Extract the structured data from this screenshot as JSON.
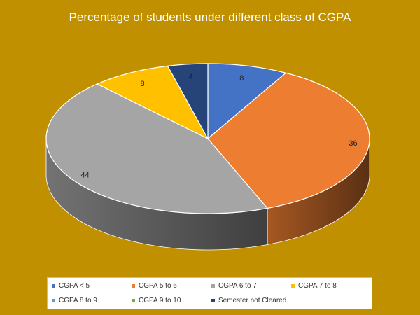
{
  "chart_data": {
    "type": "pie",
    "style": "3d",
    "title": "Percentage of students under different class of CGPA",
    "slices": [
      {
        "label": "CGPA < 5",
        "value": 8,
        "color": "#4472c4"
      },
      {
        "label": "CGPA 5 to 6",
        "value": 36,
        "color": "#ed7d31"
      },
      {
        "label": "CGPA 6 to 7",
        "value": 44,
        "color": "#a5a5a5"
      },
      {
        "label": "CGPA 7 to 8",
        "value": 8,
        "color": "#ffc000"
      },
      {
        "label": "CGPA 8 to 9",
        "value": 0,
        "color": "#5b9bd5"
      },
      {
        "label": "CGPA 9 to 10",
        "value": 0,
        "color": "#70ad47"
      },
      {
        "label": "Semester not Cleared",
        "value": 4,
        "color": "#264478"
      }
    ],
    "legend_position": "bottom"
  }
}
